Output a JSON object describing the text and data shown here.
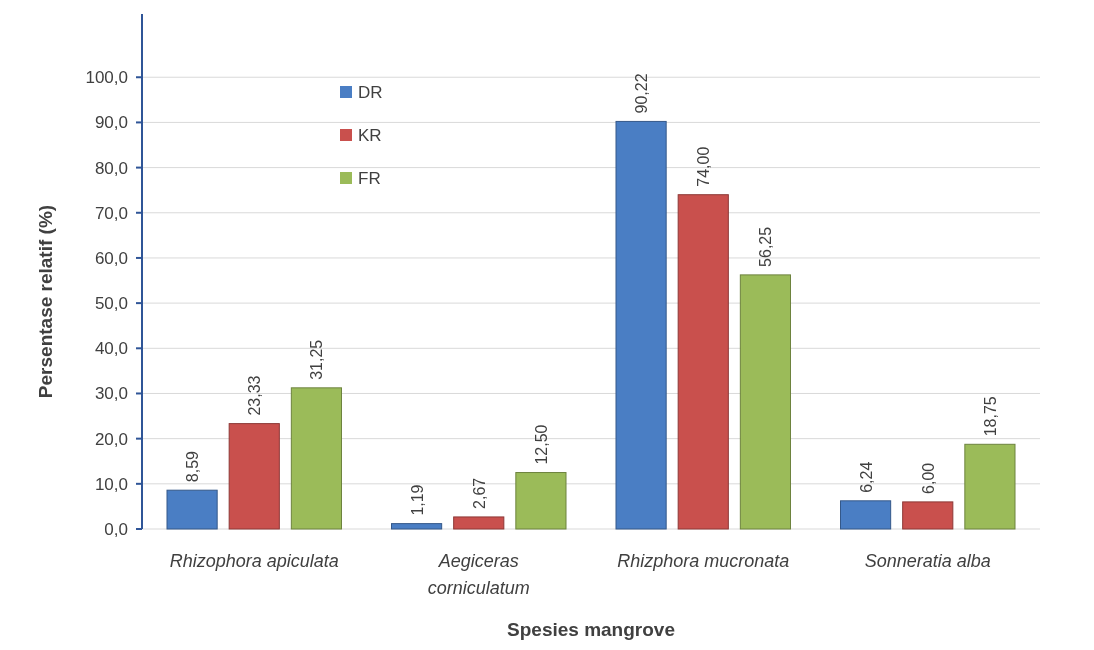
{
  "chart_data": {
    "type": "bar",
    "xlabel": "Spesies mangrove",
    "ylabel": "Persentase relatif (%)",
    "categories": [
      "Rhizophora apiculata",
      "Aegiceras corniculatum",
      "Rhizphora mucronata",
      "Sonneratia alba"
    ],
    "series": [
      {
        "name": "DR",
        "color": "#4a7ec4",
        "values": [
          8.59,
          1.19,
          90.22,
          6.24
        ],
        "value_labels": [
          "8,59",
          "1,19",
          "90,22",
          "6,24"
        ]
      },
      {
        "name": "KR",
        "color": "#c9504d",
        "values": [
          23.33,
          2.67,
          74.0,
          6.0
        ],
        "value_labels": [
          "23,33",
          "2,67",
          "74,00",
          "6,00"
        ]
      },
      {
        "name": "FR",
        "color": "#9bbb59",
        "values": [
          31.25,
          12.5,
          56.25,
          18.75
        ],
        "value_labels": [
          "31,25",
          "12,50",
          "56,25",
          "18,75"
        ]
      }
    ],
    "ylim": [
      0,
      114
    ],
    "yticks": [
      {
        "value": 0,
        "label": "0,0"
      },
      {
        "value": 10,
        "label": "10,0"
      },
      {
        "value": 20,
        "label": "20,0"
      },
      {
        "value": 30,
        "label": "30,0"
      },
      {
        "value": 40,
        "label": "40,0"
      },
      {
        "value": 50,
        "label": "50,0"
      },
      {
        "value": 60,
        "label": "60,0"
      },
      {
        "value": 70,
        "label": "70,0"
      },
      {
        "value": 80,
        "label": "80,0"
      },
      {
        "value": 90,
        "label": "90,0"
      },
      {
        "value": 100,
        "label": "100,0"
      }
    ],
    "grid": "y",
    "legend": "top left"
  }
}
